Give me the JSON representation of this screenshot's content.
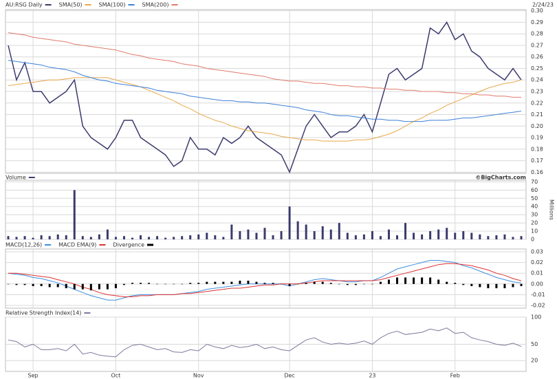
{
  "chart_data": [
    {
      "type": "line",
      "date": "2/24/23",
      "ylim": [
        0.159,
        0.301
      ],
      "yticks": [
        0.16,
        0.17,
        0.18,
        0.19,
        {
          "value": 0.2,
          "label": "0.20"
        },
        0.21,
        0.22,
        0.23,
        0.24,
        0.25,
        0.26,
        0.27,
        0.28,
        0.29,
        {
          "value": 0.3,
          "label": "0.30"
        }
      ],
      "grid": true,
      "series": [
        {
          "name": "AU:RSG Daily",
          "color": "#3a3a6e",
          "values": [
            0.27,
            0.24,
            0.255,
            0.23,
            0.23,
            0.22,
            0.225,
            0.23,
            0.24,
            0.2,
            0.19,
            0.185,
            0.18,
            0.19,
            0.205,
            0.205,
            0.19,
            0.185,
            0.18,
            0.175,
            0.165,
            0.17,
            0.19,
            0.18,
            0.18,
            0.175,
            0.19,
            0.185,
            0.19,
            0.2,
            0.19,
            0.185,
            0.18,
            0.175,
            0.16,
            0.18,
            0.2,
            0.21,
            0.2,
            0.19,
            0.195,
            0.195,
            0.2,
            0.21,
            0.195,
            0.22,
            0.245,
            0.25,
            0.24,
            0.245,
            0.25,
            0.285,
            0.28,
            0.29,
            0.275,
            0.28,
            0.265,
            0.26,
            0.25,
            0.245,
            0.24,
            0.25,
            0.24
          ]
        },
        {
          "name": "SMA(50)",
          "color": "#e8a848",
          "values": [
            0.235,
            0.236,
            0.237,
            0.238,
            0.239,
            0.24,
            0.24,
            0.241,
            0.242,
            0.242,
            0.242,
            0.242,
            0.242,
            0.24,
            0.238,
            0.236,
            0.234,
            0.231,
            0.228,
            0.225,
            0.222,
            0.218,
            0.215,
            0.211,
            0.208,
            0.205,
            0.203,
            0.2,
            0.198,
            0.196,
            0.195,
            0.194,
            0.193,
            0.191,
            0.19,
            0.189,
            0.188,
            0.188,
            0.187,
            0.187,
            0.187,
            0.187,
            0.188,
            0.188,
            0.189,
            0.191,
            0.193,
            0.196,
            0.2,
            0.204,
            0.207,
            0.211,
            0.214,
            0.218,
            0.221,
            0.224,
            0.227,
            0.23,
            0.233,
            0.235,
            0.237,
            0.238,
            0.24
          ]
        },
        {
          "name": "SMA(100)",
          "color": "#3c7fd8",
          "values": [
            0.257,
            0.256,
            0.255,
            0.254,
            0.253,
            0.251,
            0.25,
            0.249,
            0.247,
            0.244,
            0.242,
            0.24,
            0.239,
            0.237,
            0.236,
            0.235,
            0.234,
            0.233,
            0.231,
            0.23,
            0.229,
            0.228,
            0.226,
            0.225,
            0.224,
            0.223,
            0.222,
            0.222,
            0.221,
            0.221,
            0.22,
            0.22,
            0.219,
            0.218,
            0.217,
            0.216,
            0.214,
            0.213,
            0.212,
            0.21,
            0.209,
            0.209,
            0.208,
            0.207,
            0.206,
            0.206,
            0.205,
            0.205,
            0.204,
            0.204,
            0.204,
            0.205,
            0.205,
            0.205,
            0.206,
            0.207,
            0.207,
            0.208,
            0.209,
            0.21,
            0.211,
            0.212,
            0.213
          ]
        },
        {
          "name": "SMA(200)",
          "color": "#e07a6a",
          "values": [
            0.281,
            0.28,
            0.279,
            0.277,
            0.276,
            0.275,
            0.274,
            0.273,
            0.271,
            0.27,
            0.269,
            0.268,
            0.267,
            0.266,
            0.264,
            0.262,
            0.261,
            0.259,
            0.258,
            0.257,
            0.256,
            0.254,
            0.253,
            0.252,
            0.25,
            0.249,
            0.248,
            0.247,
            0.246,
            0.245,
            0.244,
            0.243,
            0.241,
            0.24,
            0.239,
            0.239,
            0.238,
            0.237,
            0.237,
            0.236,
            0.235,
            0.235,
            0.234,
            0.234,
            0.233,
            0.233,
            0.232,
            0.232,
            0.231,
            0.231,
            0.23,
            0.23,
            0.23,
            0.229,
            0.229,
            0.228,
            0.228,
            0.227,
            0.227,
            0.226,
            0.226,
            0.225,
            0.225
          ]
        }
      ]
    },
    {
      "type": "bar",
      "credit": "©BigCharts.com",
      "y_label": "Millions",
      "ylim": [
        0,
        72
      ],
      "yticks": [
        0,
        10,
        20,
        30,
        40,
        50,
        60,
        70
      ],
      "grid": true,
      "series": [
        {
          "name": "Volume",
          "color": "#3a3a6e",
          "values": [
            4,
            3,
            4,
            2,
            5,
            4,
            6,
            5,
            60,
            4,
            3,
            6,
            12,
            3,
            4,
            2,
            5,
            3,
            4,
            2,
            3,
            4,
            5,
            6,
            8,
            5,
            3,
            18,
            10,
            12,
            8,
            14,
            5,
            10,
            40,
            22,
            18,
            10,
            16,
            12,
            20,
            8,
            5,
            6,
            10,
            4,
            12,
            5,
            20,
            8,
            6,
            10,
            12,
            14,
            8,
            10,
            8,
            6,
            4,
            5,
            6,
            3,
            4
          ]
        }
      ]
    },
    {
      "type": "line",
      "ylim": [
        -0.0226,
        0.0326
      ],
      "yticks": [
        -0.02,
        -0.01,
        {
          "value": 0,
          "label": "0.00"
        },
        0.01,
        0.02,
        0.03
      ],
      "grid": true,
      "series": [
        {
          "name": "MACD(12,26)",
          "color": "#3c8ee0",
          "values": [
            0.01,
            0.009,
            0.008,
            0.006,
            0.005,
            0.003,
            0.001,
            -0.002,
            -0.005,
            -0.008,
            -0.011,
            -0.013,
            -0.015,
            -0.015,
            -0.013,
            -0.011,
            -0.01,
            -0.01,
            -0.01,
            -0.01,
            -0.01,
            -0.009,
            -0.008,
            -0.007,
            -0.005,
            -0.004,
            -0.003,
            -0.002,
            -0.001,
            0,
            0,
            0,
            0,
            0,
            -0.002,
            0,
            0.002,
            0.004,
            0.005,
            0.004,
            0.003,
            0.002,
            0.002,
            0.003,
            0.003,
            0.006,
            0.01,
            0.014,
            0.016,
            0.018,
            0.02,
            0.022,
            0.022,
            0.021,
            0.02,
            0.017,
            0.015,
            0.012,
            0.009,
            0.006,
            0.004,
            0.002,
            0.001
          ]
        },
        {
          "name": "MACD EMA(9)",
          "color": "#e03030",
          "values": [
            0.01,
            0.01,
            0.009,
            0.008,
            0.007,
            0.006,
            0.004,
            0.002,
            0,
            -0.003,
            -0.005,
            -0.008,
            -0.01,
            -0.011,
            -0.012,
            -0.012,
            -0.011,
            -0.011,
            -0.01,
            -0.01,
            -0.01,
            -0.009,
            -0.009,
            -0.008,
            -0.007,
            -0.006,
            -0.005,
            -0.004,
            -0.004,
            -0.003,
            -0.002,
            -0.001,
            -0.001,
            0,
            0,
            0,
            0.001,
            0.002,
            0.003,
            0.003,
            0.003,
            0.003,
            0.003,
            0.003,
            0.003,
            0.004,
            0.006,
            0.008,
            0.01,
            0.012,
            0.014,
            0.016,
            0.018,
            0.019,
            0.019,
            0.018,
            0.017,
            0.015,
            0.013,
            0.01,
            0.008,
            0.005,
            0.003
          ]
        },
        {
          "name": "Divergence",
          "color": "#000000",
          "type": "bar",
          "values": [
            0,
            -0.001,
            -0.001,
            -0.002,
            -0.002,
            -0.003,
            -0.003,
            -0.004,
            -0.005,
            -0.005,
            -0.006,
            -0.005,
            -0.005,
            -0.004,
            -0.001,
            0.001,
            0.001,
            0.001,
            0,
            0,
            0,
            0,
            0.001,
            0.001,
            0.002,
            0.002,
            0.002,
            0.002,
            0.003,
            0.003,
            0.002,
            0.001,
            0.001,
            0,
            -0.002,
            0,
            0.001,
            0.002,
            0.002,
            0.001,
            0,
            -0.001,
            -0.001,
            0,
            0,
            0.002,
            0.004,
            0.006,
            0.006,
            0.006,
            0.006,
            0.006,
            0.004,
            0.002,
            0.001,
            -0.001,
            -0.002,
            -0.003,
            -0.004,
            -0.004,
            -0.004,
            -0.003,
            -0.002
          ]
        }
      ]
    },
    {
      "type": "line",
      "ylim": [
        0,
        100
      ],
      "yticks": [
        20,
        50,
        100
      ],
      "grid": true,
      "categories": [
        null,
        null,
        null,
        "Sep",
        null,
        null,
        null,
        null,
        null,
        null,
        null,
        null,
        null,
        "Oct",
        null,
        null,
        null,
        null,
        null,
        null,
        null,
        null,
        null,
        "Nov",
        null,
        null,
        null,
        null,
        null,
        null,
        null,
        null,
        null,
        null,
        "Dec",
        null,
        null,
        null,
        null,
        null,
        null,
        null,
        null,
        null,
        "23",
        null,
        null,
        null,
        null,
        null,
        null,
        null,
        null,
        null,
        "Feb",
        null,
        null,
        null,
        null,
        null,
        null,
        null,
        null
      ],
      "series": [
        {
          "name": "Relative Strength Index(14)",
          "color": "#7a7a9e",
          "values": [
            58,
            55,
            45,
            50,
            40,
            40,
            42,
            38,
            50,
            32,
            35,
            30,
            28,
            27,
            40,
            48,
            50,
            45,
            40,
            42,
            36,
            35,
            40,
            38,
            50,
            45,
            42,
            48,
            44,
            46,
            50,
            42,
            45,
            40,
            38,
            48,
            58,
            62,
            54,
            50,
            52,
            50,
            52,
            56,
            50,
            62,
            70,
            74,
            68,
            70,
            72,
            78,
            75,
            80,
            70,
            72,
            62,
            58,
            55,
            50,
            48,
            52,
            46
          ]
        }
      ]
    }
  ]
}
